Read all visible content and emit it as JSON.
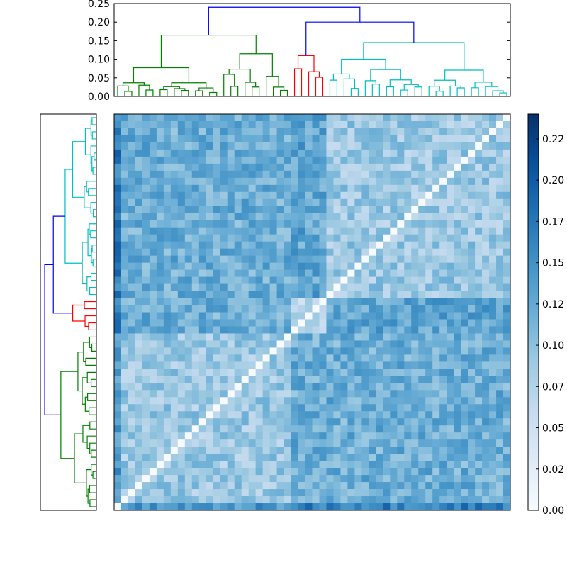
{
  "chart_data": {
    "type": "heatmap",
    "title": "",
    "colormap": "Blues",
    "n": 56,
    "colorbar": {
      "min": 0.0,
      "max": 0.24,
      "ticks": [
        0.0,
        0.025,
        0.05,
        0.075,
        0.1,
        0.125,
        0.15,
        0.175,
        0.2,
        0.225
      ],
      "tick_labels": [
        "0.00",
        "0.02",
        "0.05",
        "0.07",
        "0.10",
        "0.12",
        "0.15",
        "0.17",
        "0.20",
        "0.22"
      ]
    },
    "top_dendrogram": {
      "y_range": [
        0,
        0.25
      ],
      "y_ticks": [
        0,
        0.05,
        0.1,
        0.15,
        0.2,
        0.25
      ],
      "y_tick_labels": [
        "0.00",
        "0.05",
        "0.10",
        "0.15",
        "0.20",
        "0.25"
      ],
      "root_height": 0.24,
      "clusters": [
        {
          "color": "#008000",
          "leaves": 25,
          "merge_height": 0.165
        },
        {
          "color": "#ff0000",
          "leaves": 5,
          "merge_height": 0.11
        },
        {
          "color": "#00bfbf",
          "leaves": 26,
          "merge_height": 0.145
        }
      ],
      "link_color": "#0000ff"
    },
    "left_dendrogram": {
      "clusters_top_to_bottom": [
        {
          "color": "#00bfbf",
          "leaves": 26
        },
        {
          "color": "#ff0000",
          "leaves": 5
        },
        {
          "color": "#008000",
          "leaves": 25
        }
      ],
      "link_color": "#0000ff"
    },
    "block_means": [
      [
        0.09,
        0.13,
        0.12
      ],
      [
        0.13,
        0.07,
        0.12
      ],
      [
        0.12,
        0.12,
        0.09
      ]
    ],
    "diagonal": 0.0
  }
}
